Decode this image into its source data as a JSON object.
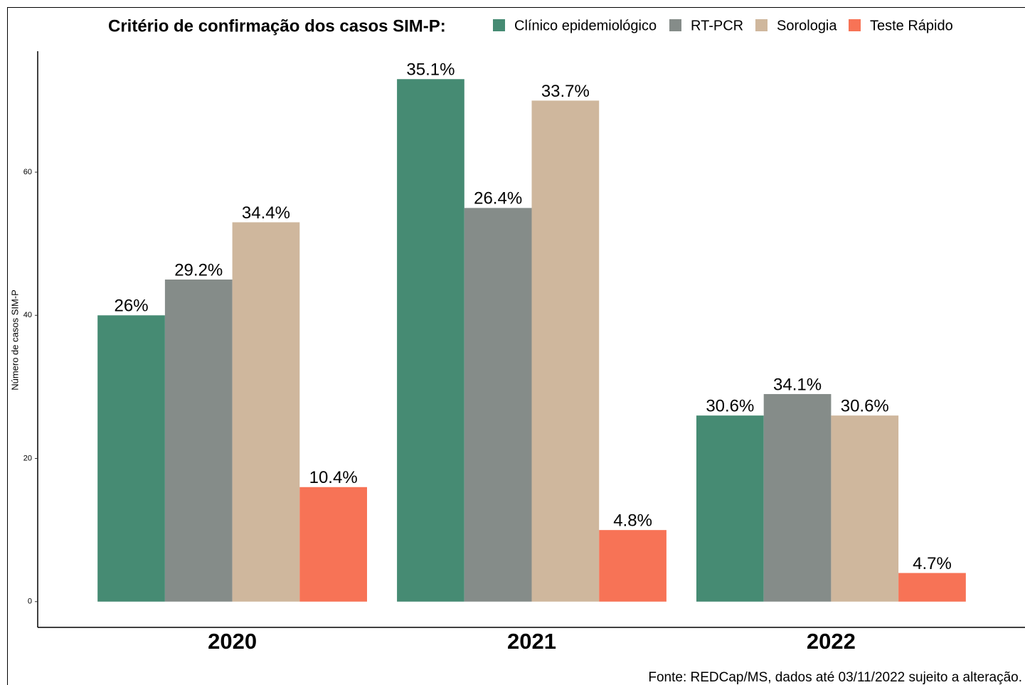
{
  "chart_data": {
    "type": "bar",
    "title": "Critério de confirmação dos casos SIM-P:",
    "y_label": "Número de casos SIM-P",
    "caption": "Fonte: REDCap/MS, dados até 03/11/2022 sujeito a alteração.",
    "categories": [
      "2020",
      "2021",
      "2022"
    ],
    "series": [
      {
        "name": "Clínico epidemiológico",
        "color": "#468b73",
        "values": [
          40,
          73,
          26
        ],
        "data_labels": [
          "26%",
          "35.1%",
          "30.6%"
        ]
      },
      {
        "name": "RT-PCR",
        "color": "#858c89",
        "values": [
          45,
          55,
          29
        ],
        "data_labels": [
          "29.2%",
          "26.4%",
          "34.1%"
        ]
      },
      {
        "name": "Sorologia",
        "color": "#cfb79d",
        "values": [
          53,
          70,
          26
        ],
        "data_labels": [
          "34.4%",
          "33.7%",
          "30.6%"
        ]
      },
      {
        "name": "Teste Rápido",
        "color": "#f77356",
        "values": [
          16,
          10,
          4
        ],
        "data_labels": [
          "10.4%",
          "4.8%",
          "4.7%"
        ]
      }
    ],
    "ylim": [
      -3.6,
      76.9
    ],
    "yticks": [
      0,
      20,
      40,
      60
    ],
    "grid": false,
    "legend_position": "top"
  }
}
